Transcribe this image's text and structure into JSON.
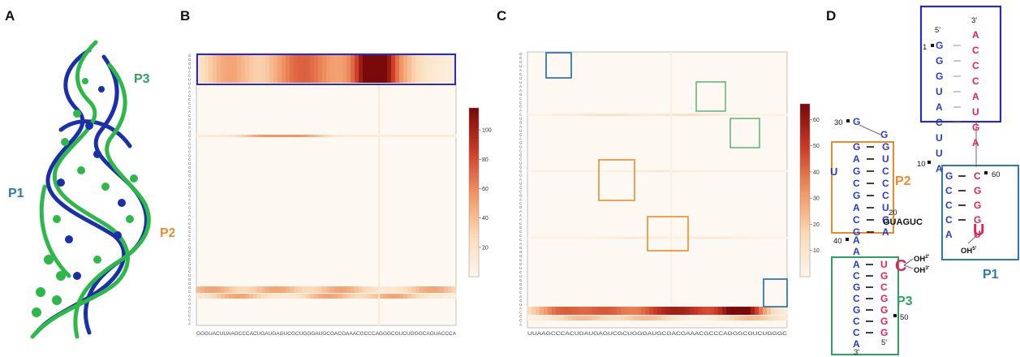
{
  "panel_labels": {
    "a": "A",
    "b": "B",
    "c": "C",
    "d": "D"
  },
  "colors": {
    "blue_strand": "#1a2fa8",
    "green_strand": "#2fb84a",
    "p1_blue": "#2f78b4",
    "p2_orange": "#ea8c2c",
    "p3_green": "#2fa35e",
    "box_navy": "#2b2bc4",
    "nt_blue": "#2a3bc9",
    "nt_pink": "#e0225a",
    "heat_low": "#fdf8f1",
    "heat_high": "#7a0a0a"
  },
  "panel_a": {
    "labels": {
      "p3": "P3",
      "p1": "P1",
      "p2": "P2"
    }
  },
  "panel_b": {
    "x_sequence": "GGGUACUUAAGCCCACUGAUGAGUCGCUGGGAUGCGACGAAACGCCCAGGGCGUCUGGGCAGUACCCA",
    "colorbar": {
      "ticks": [
        "100",
        "80",
        "60",
        "40",
        "20"
      ],
      "tick_values": [
        100,
        80,
        60,
        40,
        20
      ],
      "max": 115
    }
  },
  "panel_c": {
    "x_sequence": "UUAAGCCCACUGAUGAGUCGCUGGGAUGCGACGAAACGCCCAGGGCGUCUGGGC",
    "colorbar": {
      "ticks": [
        "60",
        "50",
        "40",
        "30",
        "20",
        "10"
      ],
      "tick_values": [
        60,
        50,
        40,
        30,
        20,
        10
      ],
      "max": 66
    }
  },
  "panel_d": {
    "labels": {
      "p1": "P1",
      "p2": "P2",
      "p3": "P3"
    },
    "numbers": {
      "n1": "1",
      "n10": "10",
      "n20": "20",
      "n30": "30",
      "n40": "40",
      "n50": "50",
      "n60": "60"
    },
    "ends": {
      "five_top": "5'",
      "three_top": "3'",
      "five_bottom": "5'",
      "three_bottom": "3'"
    },
    "loop_seq": "GUAGUC",
    "bulge_u": "U",
    "hairpin": {
      "left": "G",
      "right": "G"
    },
    "cleavage": {
      "c": "C",
      "u": "U",
      "oh2": "OH",
      "oh2_sup": "2'",
      "oh3": "OH",
      "oh3_sup": "3'",
      "oh5": "OH",
      "oh5_sup": "5'"
    },
    "p1_top_helix": {
      "left": [
        "G",
        "G",
        "G",
        "U",
        "A",
        "C"
      ],
      "right": [
        "A",
        "C",
        "C",
        "C",
        "A",
        "U",
        "G"
      ]
    },
    "linker_mid": {
      "left": [
        "U",
        "U",
        "A"
      ],
      "right": [
        "A"
      ]
    },
    "p1_bottom_helix": {
      "left": [
        "G",
        "C",
        "C",
        "C",
        "A"
      ],
      "right": [
        "C",
        "G",
        "G",
        "G",
        "U"
      ]
    },
    "p2_helix": {
      "left": [
        "G",
        "A",
        "G",
        "C",
        "G",
        "A",
        "C",
        "G"
      ],
      "right": [
        "G",
        "U",
        "C",
        "C",
        "C",
        "U",
        "G",
        "A"
      ]
    },
    "aa_linker": [
      "A",
      "A"
    ],
    "p3_helix": {
      "left": [
        "A",
        "C",
        "G",
        "C",
        "G",
        "C",
        "C",
        "A"
      ],
      "right": [
        "U",
        "G",
        "C",
        "G",
        "G",
        "G",
        "G"
      ]
    }
  }
}
